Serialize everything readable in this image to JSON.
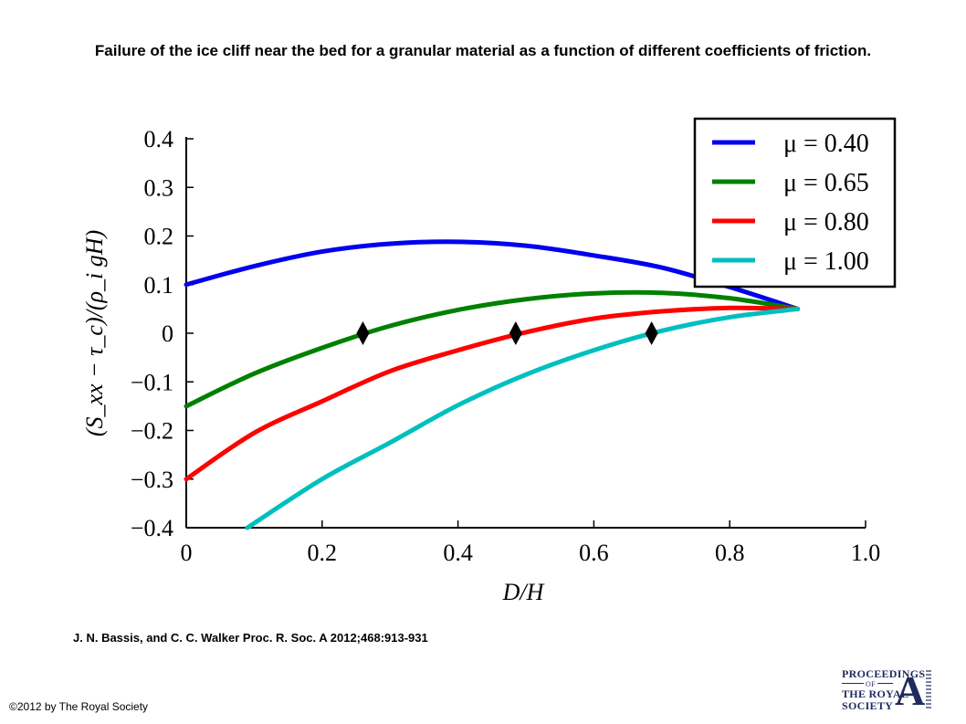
{
  "header": {
    "title": "Failure of the ice cliff near the bed for a granular material as a function of different coefficients of friction."
  },
  "citation": "J. N. Bassis, and C. C. Walker Proc. R. Soc. A 2012;468:913-931",
  "copyright": "©2012 by The Royal Society",
  "logo": {
    "line1": "PROCEEDINGS",
    "line2": "OF",
    "line3": "THE ROYAL",
    "line4": "SOCIETY",
    "letter": "A"
  },
  "chart_data": {
    "type": "line",
    "xlabel": "D/H",
    "ylabel": "(S_xx − τ_c)/(ρ_i gH)",
    "xlim": [
      0,
      1.0
    ],
    "ylim": [
      -0.4,
      0.4
    ],
    "x_ticks": [
      "0",
      "0.2",
      "0.4",
      "0.6",
      "0.8",
      "1.0"
    ],
    "y_ticks": [
      "0.4",
      "0.3",
      "0.2",
      "0.1",
      "0",
      "−0.1",
      "−0.2",
      "−0.3",
      "−0.4"
    ],
    "grid": false,
    "legend_position": "top-right",
    "series": [
      {
        "name": "μ = 0.40",
        "color": "#0000ee",
        "x": [
          0,
          0.1,
          0.2,
          0.3,
          0.4,
          0.5,
          0.6,
          0.7,
          0.8,
          0.9
        ],
        "y": [
          0.1,
          0.138,
          0.168,
          0.184,
          0.188,
          0.18,
          0.16,
          0.135,
          0.095,
          0.05
        ]
      },
      {
        "name": "μ = 0.65",
        "color": "#008000",
        "x": [
          0,
          0.1,
          0.2,
          0.3,
          0.4,
          0.5,
          0.6,
          0.7,
          0.8,
          0.9
        ],
        "y": [
          -0.15,
          -0.083,
          -0.03,
          0.015,
          0.048,
          0.07,
          0.082,
          0.083,
          0.072,
          0.05
        ]
      },
      {
        "name": "μ = 0.80",
        "color": "#ff0000",
        "x": [
          0,
          0.1,
          0.2,
          0.3,
          0.4,
          0.5,
          0.6,
          0.7,
          0.8,
          0.9
        ],
        "y": [
          -0.3,
          -0.205,
          -0.14,
          -0.078,
          -0.035,
          0.002,
          0.03,
          0.045,
          0.052,
          0.05
        ]
      },
      {
        "name": "μ = 1.00",
        "color": "#00bfbf",
        "x": [
          0.09,
          0.2,
          0.3,
          0.4,
          0.5,
          0.6,
          0.7,
          0.8,
          0.9
        ],
        "y": [
          -0.4,
          -0.3,
          -0.225,
          -0.148,
          -0.085,
          -0.035,
          0.005,
          0.033,
          0.05
        ]
      }
    ],
    "markers": {
      "shape": "diamond",
      "color": "#000000",
      "points": [
        {
          "x": 0.26,
          "y": 0
        },
        {
          "x": 0.485,
          "y": 0
        },
        {
          "x": 0.685,
          "y": 0
        }
      ]
    }
  }
}
